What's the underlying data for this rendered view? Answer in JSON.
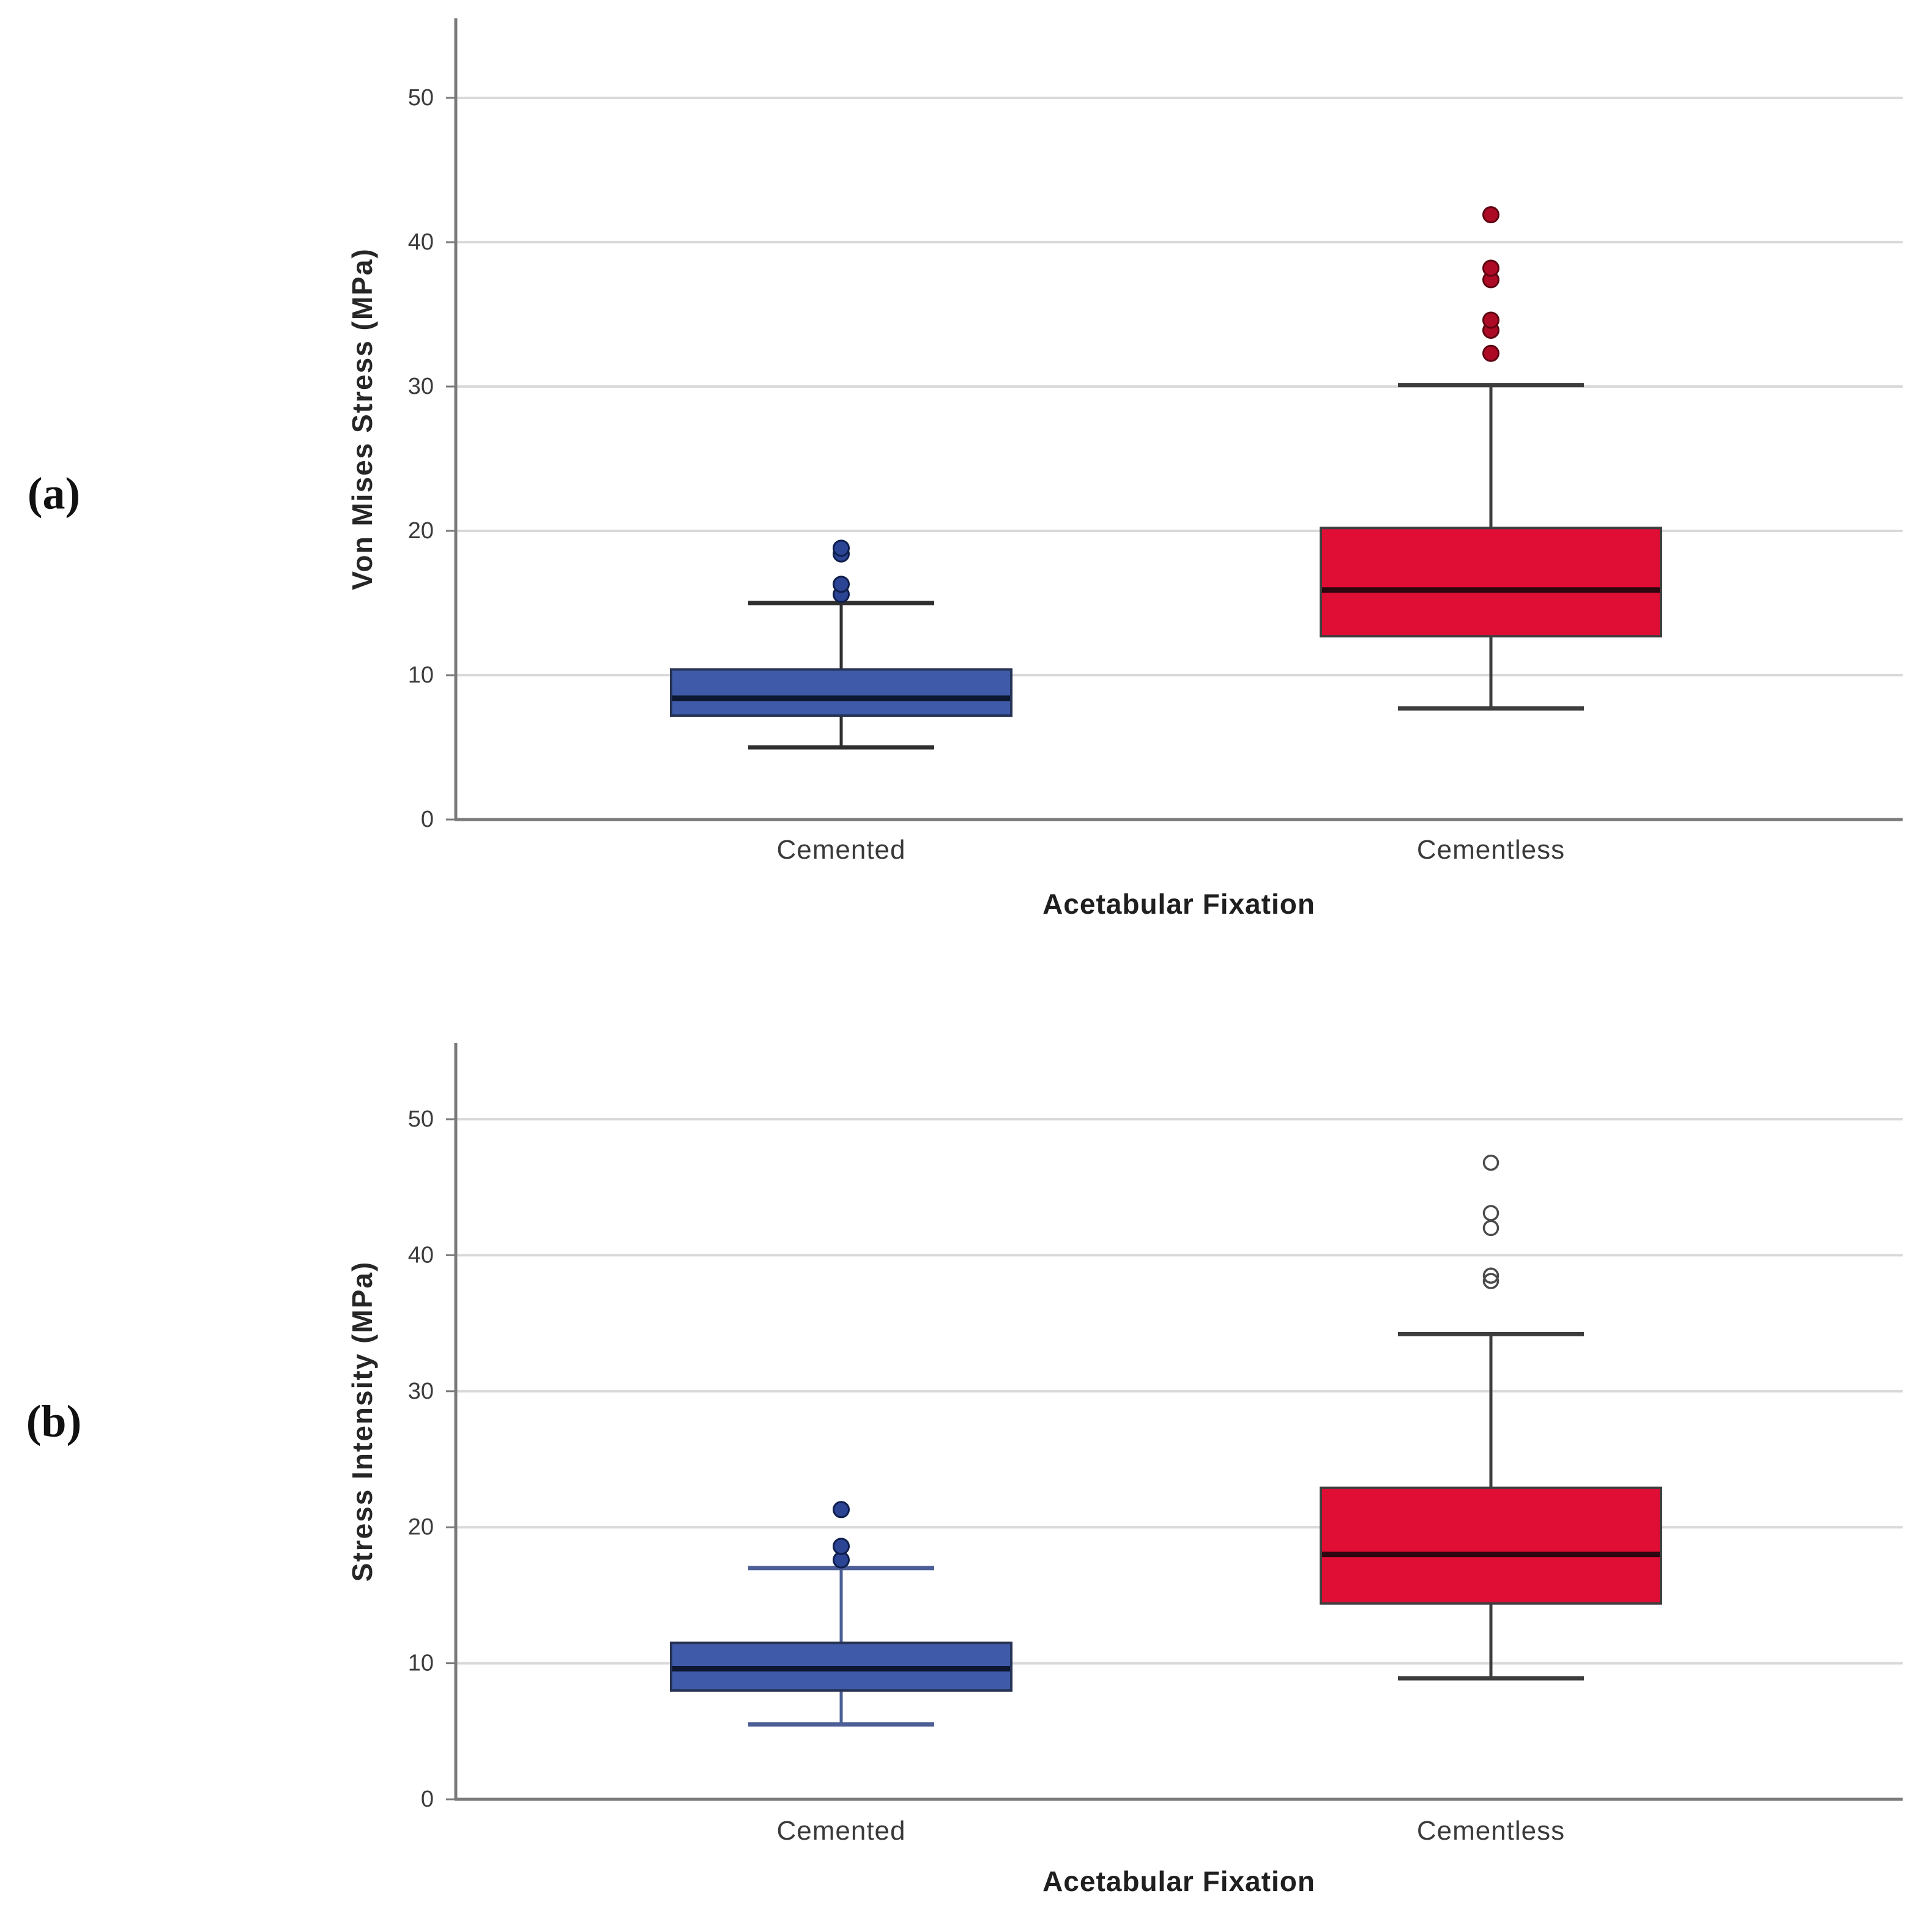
{
  "page": {
    "background": "#ffffff"
  },
  "chart_data": [
    {
      "type": "box",
      "panel_label": "(a)",
      "ylabel": "Von Mises Stress (MPa)",
      "xlabel": "Acetabular Fixation",
      "categories": [
        "Cemented",
        "Cementless"
      ],
      "ylim": [
        0,
        55
      ],
      "yticks": [
        0,
        10,
        20,
        30,
        40,
        50
      ],
      "grid": true,
      "legend": false,
      "series": [
        {
          "name": "Cemented",
          "box_fill": "#3f5aa9",
          "box_stroke": "#273355",
          "median_color": "#0d1730",
          "whisker_color": "#2f2f2f",
          "outlier_style": "filled",
          "outlier_fill": "#2c4494",
          "outlier_stroke": "#0f1f4d",
          "whisker_low": 5.0,
          "q1": 7.2,
          "median": 8.4,
          "q3": 10.4,
          "whisker_high": 15.0,
          "outliers": [
            15.6,
            16.3,
            18.4,
            18.8
          ]
        },
        {
          "name": "Cementless",
          "box_fill": "#e00d35",
          "box_stroke": "#3f3f3f",
          "median_color": "#2d060f",
          "whisker_color": "#3d3d3d",
          "outlier_style": "filled",
          "outlier_fill": "#ad0a26",
          "outlier_stroke": "#5e0512",
          "whisker_low": 7.7,
          "q1": 12.7,
          "median": 15.9,
          "q3": 20.2,
          "whisker_high": 30.1,
          "outliers": [
            32.3,
            33.9,
            34.6,
            37.4,
            38.2,
            41.9
          ]
        }
      ]
    },
    {
      "type": "box",
      "panel_label": "(b)",
      "ylabel": "Stress Intensity (MPa)",
      "xlabel": "Acetabular Fixation",
      "categories": [
        "Cemented",
        "Cementless"
      ],
      "ylim": [
        0,
        55
      ],
      "yticks": [
        0,
        10,
        20,
        30,
        40,
        50
      ],
      "grid": true,
      "legend": false,
      "series": [
        {
          "name": "Cemented",
          "box_fill": "#3f5aa9",
          "box_stroke": "#273355",
          "median_color": "#0d1730",
          "whisker_color": "#4b5e96",
          "outlier_style": "filled",
          "outlier_fill": "#2c4494",
          "outlier_stroke": "#0f1f4d",
          "whisker_low": 5.5,
          "q1": 8.0,
          "median": 9.6,
          "q3": 11.5,
          "whisker_high": 17.0,
          "outliers": [
            17.6,
            18.6,
            21.3
          ]
        },
        {
          "name": "Cementless",
          "box_fill": "#e00d35",
          "box_stroke": "#3f3f3f",
          "median_color": "#2d060f",
          "whisker_color": "#3d3d3d",
          "outlier_style": "open",
          "outlier_fill": "none",
          "outlier_stroke": "#4a4a4a",
          "whisker_low": 8.9,
          "q1": 14.4,
          "median": 18.0,
          "q3": 22.9,
          "whisker_high": 34.2,
          "outliers": [
            38.1,
            38.5,
            42.0,
            43.1,
            46.8
          ]
        }
      ]
    }
  ],
  "colors": {
    "gridline": "#d9d9d9",
    "axis": "#7a7a7a",
    "tick_text": "#3c3c3c"
  }
}
